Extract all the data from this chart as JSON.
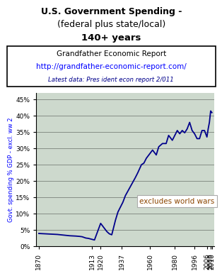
{
  "title_line1": "U.S. Government Spending -",
  "title_line2": "(federal plus state/local)",
  "title_line3": "140+ years",
  "info_line1": "Grandfather Economic Report",
  "info_line2": "http://grandfather-economic-report.com/",
  "info_line3": "Latest data: Pres ident econ report 2/011",
  "ylabel": "Govt. spending % GDP - excl. ww 2",
  "annotation": "excludes world wars",
  "plot_bg_color": "#cdd9cd",
  "line_color": "#00008B",
  "years": [
    1870,
    1875,
    1880,
    1885,
    1890,
    1895,
    1900,
    1903,
    1905,
    1908,
    1910,
    1913,
    1915,
    1920,
    1922,
    1925,
    1927,
    1929,
    1932,
    1934,
    1936,
    1938,
    1940,
    1948,
    1950,
    1953,
    1955,
    1957,
    1960,
    1962,
    1965,
    1967,
    1970,
    1973,
    1975,
    1978,
    1980,
    1982,
    1984,
    1986,
    1988,
    1990,
    1992,
    1994,
    1996,
    1998,
    2000,
    2002,
    2004,
    2006,
    2007,
    2008,
    2009,
    2010
  ],
  "values": [
    3.9,
    3.8,
    3.7,
    3.6,
    3.4,
    3.2,
    3.1,
    3.0,
    2.9,
    2.5,
    2.4,
    2.1,
    1.9,
    7.0,
    6.0,
    4.5,
    3.8,
    3.5,
    8.0,
    10.5,
    12.0,
    13.5,
    15.5,
    21.0,
    22.5,
    25.0,
    25.5,
    27.0,
    28.5,
    29.5,
    28.0,
    30.5,
    31.5,
    31.5,
    34.0,
    32.5,
    34.0,
    35.5,
    34.5,
    35.5,
    34.8,
    36.0,
    38.0,
    35.5,
    34.5,
    33.0,
    33.0,
    35.5,
    35.5,
    33.5,
    36.0,
    38.0,
    41.5,
    41.0
  ],
  "xtick_labels": [
    "1870",
    "1913",
    "1920",
    "1937",
    "1960",
    "1980",
    "1996",
    "2006",
    "2009",
    "2010"
  ],
  "xtick_positions": [
    1870,
    1913,
    1920,
    1937,
    1960,
    1980,
    1996,
    2006,
    2009,
    2010
  ],
  "ylim": [
    0,
    47
  ],
  "xlim": [
    1868,
    2012
  ],
  "yticks": [
    0,
    5,
    10,
    15,
    20,
    25,
    30,
    35,
    40,
    45
  ],
  "ytick_labels": [
    "0%",
    "5%",
    "10%",
    "15%",
    "20%",
    "25%",
    "30%",
    "35%",
    "40%",
    "45%"
  ]
}
